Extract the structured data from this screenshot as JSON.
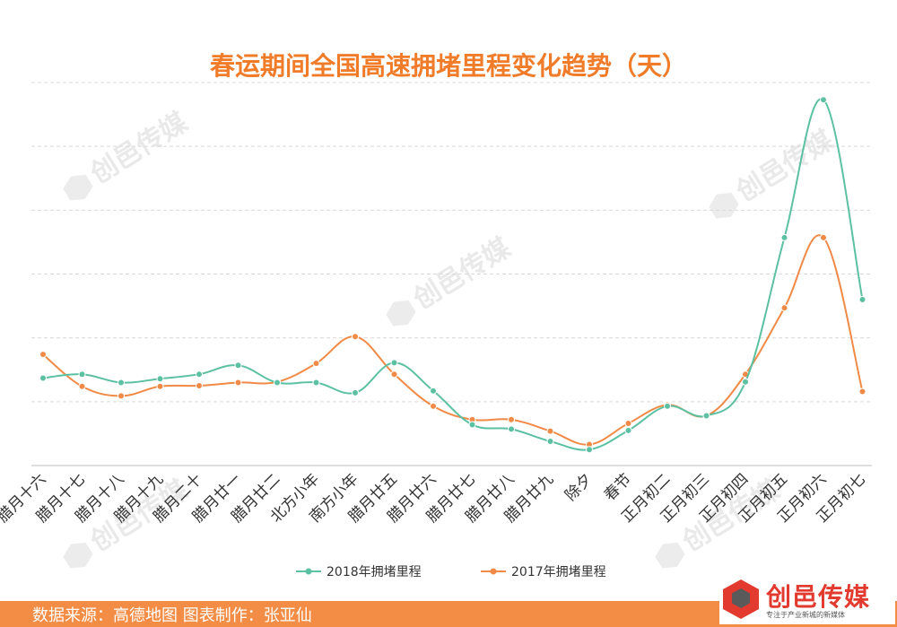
{
  "title": "春运期间全国高速拥堵里程变化趋势（天）",
  "source_text": "数据来源：高德地图  图表制作：张亚仙",
  "watermark": {
    "text": "创邑传媒",
    "sub": "专注于产业新城的新媒体"
  },
  "logo": {
    "text": "创邑传媒",
    "sub": "专注于产业新城的新媒体"
  },
  "colors": {
    "series_2018": "#5cc0a2",
    "series_2017": "#f08a46",
    "title": "#f07c2a",
    "footer": "#f38c44",
    "grid": "#d9d9d9",
    "axis": "#bfbfbf"
  },
  "chart_data": {
    "type": "line",
    "title": "春运期间全国高速拥堵里程变化趋势（天）",
    "xlabel": "",
    "ylabel": "",
    "ylim": [
      0,
      6
    ],
    "grid": true,
    "legend": "bottom",
    "categories": [
      "腊月十六",
      "腊月十七",
      "腊月十八",
      "腊月十九",
      "腊月二十",
      "腊月廿一",
      "腊月廿二",
      "北方小年",
      "南方小年",
      "腊月廿五",
      "腊月廿六",
      "腊月廿七",
      "腊月廿八",
      "腊月廿九",
      "除夕",
      "春节",
      "正月初二",
      "正月初三",
      "正月初四",
      "正月初五",
      "正月初六",
      "正月初七"
    ],
    "series": [
      {
        "name": "2018年拥堵里程",
        "color": "#5cc0a2",
        "values": [
          1.37,
          1.43,
          1.3,
          1.36,
          1.43,
          1.57,
          1.3,
          1.3,
          1.14,
          1.61,
          1.17,
          0.64,
          0.57,
          0.38,
          0.25,
          0.55,
          0.93,
          0.78,
          1.31,
          3.57,
          5.73,
          2.6
        ]
      },
      {
        "name": "2017年拥堵里程",
        "color": "#f08a46",
        "values": [
          1.74,
          1.24,
          1.09,
          1.24,
          1.25,
          1.3,
          1.31,
          1.6,
          2.02,
          1.43,
          0.93,
          0.72,
          0.72,
          0.54,
          0.33,
          0.66,
          0.95,
          0.78,
          1.43,
          2.47,
          3.57,
          1.16
        ]
      }
    ]
  }
}
